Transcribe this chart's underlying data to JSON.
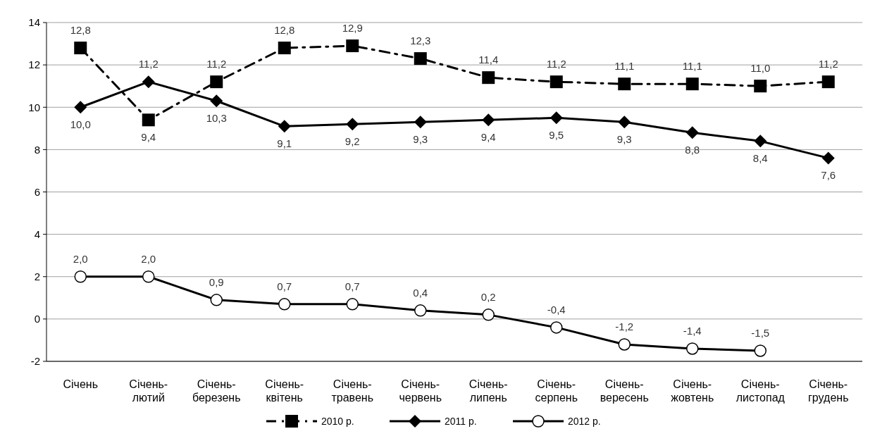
{
  "chart_data": {
    "type": "line",
    "categories": [
      "Січень",
      "Січень-лютий",
      "Січень-березень",
      "Січень-квітень",
      "Січень-травень",
      "Січень-червень",
      "Січень-липень",
      "Січень-серпень",
      "Січень-вересень",
      "Січень-жовтень",
      "Січень-листопад",
      "Січень-грудень"
    ],
    "series": [
      {
        "name": "2010 р.",
        "color": "#000000",
        "marker": "square",
        "line_style": "dashed",
        "values": [
          12.8,
          9.4,
          11.2,
          12.8,
          12.9,
          12.3,
          11.4,
          11.2,
          11.1,
          11.1,
          11.0,
          11.2
        ],
        "value_labels": [
          "12,8",
          "9,4",
          "11,2",
          "12,8",
          "12,9",
          "12,3",
          "11,4",
          "11,2",
          "11,1",
          "11,1",
          "11,0",
          "11,2"
        ]
      },
      {
        "name": "2011 р.",
        "color": "#000000",
        "marker": "diamond",
        "line_style": "solid",
        "values": [
          10.0,
          11.2,
          10.3,
          9.1,
          9.2,
          9.3,
          9.4,
          9.5,
          9.3,
          8.8,
          8.4,
          7.6
        ],
        "value_labels": [
          "10,0",
          "11,2",
          "10,3",
          "9,1",
          "9,2",
          "9,3",
          "9,4",
          "9,5",
          "9,3",
          "8,8",
          "8,4",
          "7,6"
        ]
      },
      {
        "name": "2012 р.",
        "color": "#000000",
        "marker": "circle",
        "line_style": "solid",
        "values": [
          2.0,
          2.0,
          0.9,
          0.7,
          0.7,
          0.4,
          0.2,
          -0.4,
          -1.2,
          -1.4,
          -1.5,
          null
        ],
        "value_labels": [
          "2,0",
          "2,0",
          "0,9",
          "0,7",
          "0,7",
          "0,4",
          "0,2",
          "-0,4",
          "-1,2",
          "-1,4",
          "-1,5",
          null
        ]
      }
    ],
    "ylim": [
      -2,
      14
    ],
    "yticks": [
      -2,
      0,
      2,
      4,
      6,
      8,
      10,
      12,
      14
    ],
    "grid": "y",
    "legend": "bottom"
  }
}
